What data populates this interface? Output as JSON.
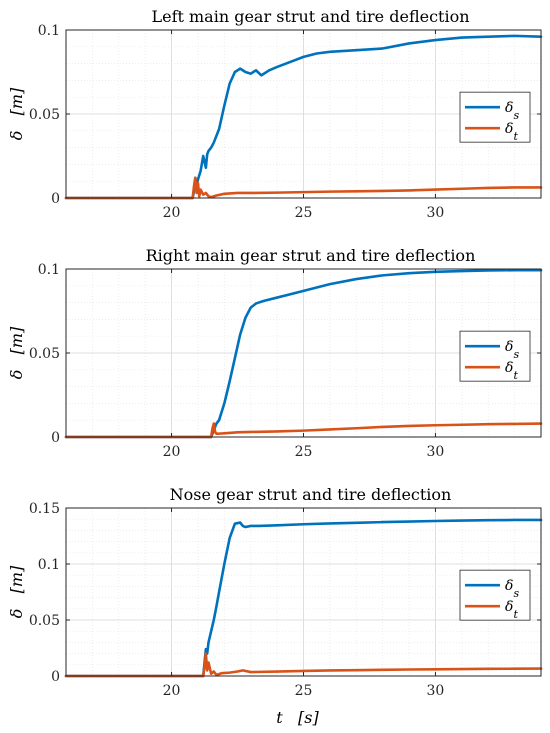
{
  "figure": {
    "xlabel": "t   [s]",
    "colors": {
      "strut": "#0072BD",
      "tire": "#D95319",
      "grid": "#d9d9d9",
      "axis": "#262626"
    }
  },
  "chart_data": [
    {
      "type": "line",
      "title": "Left main gear strut and tire deflection",
      "ylabel": "δ   [m]",
      "xlim": [
        16,
        34
      ],
      "ylim": [
        0,
        0.1
      ],
      "xticks": [
        20,
        25,
        30
      ],
      "yticks": [
        0,
        0.05,
        0.1
      ],
      "ytick_labels": [
        "0",
        "0.05",
        "0.1"
      ],
      "grid": true,
      "legend": "right",
      "series": [
        {
          "name": "δs",
          "x": [
            16,
            20.8,
            20.85,
            20.9,
            20.95,
            21.0,
            21.1,
            21.2,
            21.3,
            21.35,
            21.4,
            21.5,
            21.6,
            21.8,
            22.0,
            22.2,
            22.4,
            22.6,
            22.8,
            23.0,
            23.2,
            23.4,
            23.7,
            24.0,
            24.5,
            25.0,
            25.5,
            26.0,
            27.0,
            28.0,
            29.0,
            30.0,
            31.0,
            32.0,
            33.0,
            34.0
          ],
          "y": [
            0,
            0,
            0.004,
            0.012,
            0.008,
            0.011,
            0.016,
            0.025,
            0.018,
            0.026,
            0.028,
            0.03,
            0.033,
            0.041,
            0.055,
            0.068,
            0.075,
            0.077,
            0.075,
            0.074,
            0.076,
            0.073,
            0.076,
            0.078,
            0.081,
            0.084,
            0.086,
            0.087,
            0.088,
            0.089,
            0.092,
            0.094,
            0.0955,
            0.096,
            0.0965,
            0.096
          ]
        },
        {
          "name": "δt",
          "x": [
            16,
            20.8,
            20.85,
            20.9,
            20.95,
            21.0,
            21.05,
            21.1,
            21.2,
            21.3,
            21.4,
            21.5,
            21.7,
            22.0,
            22.5,
            23.0,
            24.0,
            25.0,
            26.0,
            27.0,
            28.0,
            29.0,
            30.0,
            31.0,
            32.0,
            33.0,
            34.0
          ],
          "y": [
            0,
            0,
            0.007,
            0.012,
            0.003,
            0.009,
            0.001,
            0.005,
            0.002,
            0.003,
            0.001,
            0.0005,
            0.0015,
            0.0025,
            0.003,
            0.003,
            0.0032,
            0.0035,
            0.0038,
            0.004,
            0.0042,
            0.0045,
            0.005,
            0.0055,
            0.006,
            0.0063,
            0.0063
          ]
        }
      ]
    },
    {
      "type": "line",
      "title": "Right main gear strut and tire deflection",
      "ylabel": "δ   [m]",
      "xlim": [
        16,
        34
      ],
      "ylim": [
        0,
        0.1
      ],
      "xticks": [
        20,
        25,
        30
      ],
      "yticks": [
        0,
        0.05,
        0.1
      ],
      "ytick_labels": [
        "0",
        "0.05",
        "0.1"
      ],
      "grid": true,
      "legend": "right",
      "series": [
        {
          "name": "δs",
          "x": [
            16,
            21.5,
            21.6,
            21.7,
            21.8,
            22.0,
            22.2,
            22.4,
            22.6,
            22.8,
            23.0,
            23.2,
            23.5,
            24.0,
            24.5,
            25.0,
            25.5,
            26.0,
            27.0,
            28.0,
            29.0,
            30.0,
            31.0,
            32.0,
            33.0,
            34.0
          ],
          "y": [
            0,
            0,
            0.004,
            0.008,
            0.01,
            0.02,
            0.033,
            0.047,
            0.061,
            0.071,
            0.077,
            0.0795,
            0.081,
            0.083,
            0.085,
            0.087,
            0.089,
            0.091,
            0.094,
            0.0962,
            0.0975,
            0.0983,
            0.0988,
            0.0991,
            0.0993,
            0.0993
          ]
        },
        {
          "name": "δt",
          "x": [
            16,
            21.5,
            21.55,
            21.6,
            21.65,
            21.7,
            21.8,
            22.0,
            22.5,
            23.0,
            24.0,
            25.0,
            26.0,
            27.0,
            28.0,
            29.0,
            30.0,
            31.0,
            32.0,
            33.0,
            34.0
          ],
          "y": [
            0,
            0,
            0.005,
            0.008,
            0.003,
            0.002,
            0.002,
            0.0022,
            0.0028,
            0.003,
            0.0033,
            0.0038,
            0.0045,
            0.0052,
            0.006,
            0.0066,
            0.007,
            0.0073,
            0.0076,
            0.0078,
            0.008
          ]
        }
      ]
    },
    {
      "type": "line",
      "title": "Nose gear strut and tire deflection",
      "ylabel": "δ   [m]",
      "xlim": [
        16,
        34
      ],
      "ylim": [
        0,
        0.15
      ],
      "xticks": [
        20,
        25,
        30
      ],
      "yticks": [
        0,
        0.05,
        0.1,
        0.15
      ],
      "ytick_labels": [
        "0",
        "0.05",
        "0.1",
        "0.15"
      ],
      "grid": true,
      "legend": "right",
      "series": [
        {
          "name": "δs",
          "x": [
            16,
            21.2,
            21.25,
            21.3,
            21.35,
            21.4,
            21.5,
            21.6,
            21.7,
            21.8,
            22.0,
            22.2,
            22.4,
            22.6,
            22.7,
            22.8,
            23.0,
            23.3,
            24.0,
            25.0,
            26.0,
            27.0,
            28.0,
            29.0,
            30.0,
            31.0,
            32.0,
            33.0,
            34.0
          ],
          "y": [
            0,
            0,
            0.012,
            0.024,
            0.02,
            0.03,
            0.04,
            0.05,
            0.062,
            0.075,
            0.1,
            0.123,
            0.136,
            0.137,
            0.134,
            0.133,
            0.134,
            0.134,
            0.1345,
            0.1355,
            0.1362,
            0.1368,
            0.1374,
            0.1379,
            0.1384,
            0.1388,
            0.1391,
            0.1393,
            0.1393
          ]
        },
        {
          "name": "δt",
          "x": [
            16,
            21.2,
            21.25,
            21.3,
            21.35,
            21.4,
            21.5,
            21.6,
            21.7,
            21.9,
            22.2,
            22.5,
            22.7,
            23.0,
            24.0,
            25.0,
            26.0,
            27.0,
            28.0,
            29.0,
            30.0,
            31.0,
            32.0,
            33.0,
            34.0
          ],
          "y": [
            0,
            0,
            0.008,
            0.02,
            0.005,
            0.012,
            0.002,
            0.004,
            0.001,
            0.0025,
            0.003,
            0.004,
            0.005,
            0.0035,
            0.004,
            0.0045,
            0.005,
            0.0052,
            0.0055,
            0.0058,
            0.006,
            0.0062,
            0.0064,
            0.0065,
            0.0066
          ]
        }
      ]
    }
  ]
}
